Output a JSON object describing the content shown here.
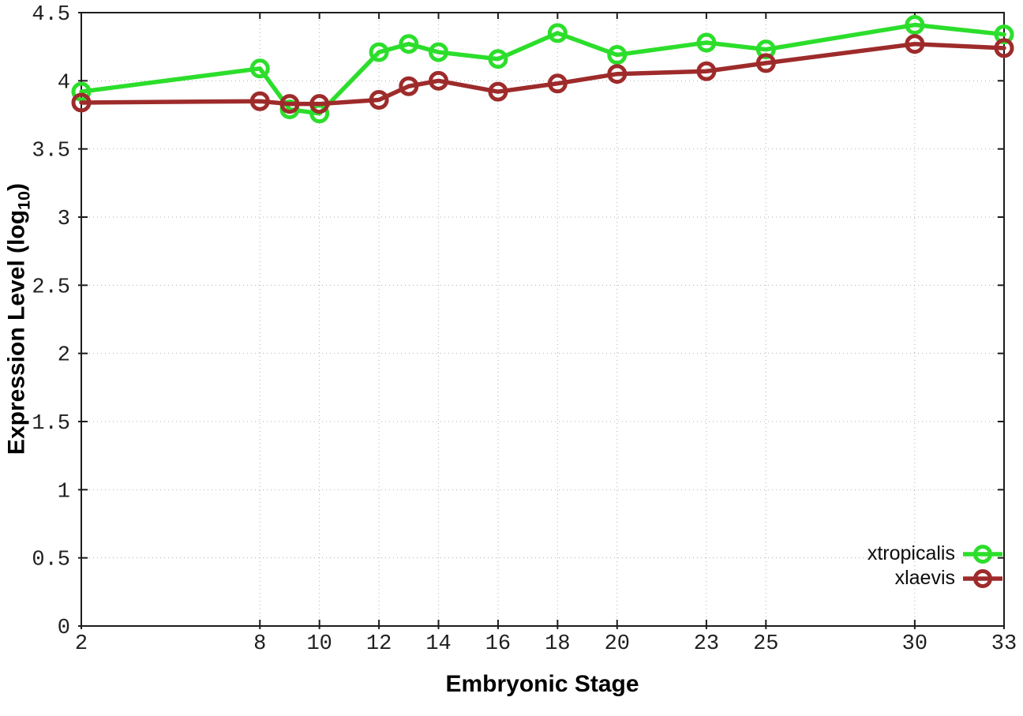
{
  "chart_data": {
    "type": "line",
    "title": "",
    "xlabel": "Embryonic Stage",
    "ylabel": "Expression Level (log10)",
    "ylabel_parts": {
      "prefix": "Expression Level (log",
      "sub": "10",
      "suffix": ")"
    },
    "x": [
      2,
      8,
      9,
      10,
      12,
      13,
      14,
      16,
      18,
      20,
      23,
      25,
      30,
      33
    ],
    "series": [
      {
        "name": "xtropicalis",
        "color": "#2cde2b",
        "marker": "open-circle",
        "values": [
          3.92,
          4.09,
          3.79,
          3.76,
          4.21,
          4.27,
          4.21,
          4.16,
          4.35,
          4.19,
          4.28,
          4.23,
          4.41,
          4.34
        ]
      },
      {
        "name": "xlaevis",
        "color": "#9e2b2b",
        "marker": "open-circle",
        "values": [
          3.84,
          3.85,
          3.83,
          3.83,
          3.86,
          3.96,
          4.0,
          3.92,
          3.98,
          4.05,
          4.07,
          4.13,
          4.27,
          4.24
        ]
      }
    ],
    "xlim": [
      2,
      33
    ],
    "ylim": [
      0,
      4.5
    ],
    "x_tick_values": [
      2,
      8,
      10,
      12,
      14,
      16,
      18,
      20,
      23,
      25,
      30,
      33
    ],
    "x_tick_labels": [
      "2",
      "8",
      "10",
      "12",
      "14",
      "16",
      "18",
      "20",
      "23",
      "25",
      "30",
      "33"
    ],
    "y_tick_values": [
      0,
      0.5,
      1,
      1.5,
      2,
      2.5,
      3,
      3.5,
      4,
      4.5
    ],
    "y_tick_labels": [
      "0",
      "0.5",
      "1",
      "1.5",
      "2",
      "2.5",
      "3",
      "3.5",
      "4",
      "4.5"
    ],
    "grid": true,
    "legend_position": "bottom-right",
    "colors": {
      "grid": "#b0b0b0",
      "axis": "#1c1c1c",
      "background": "#ffffff"
    }
  }
}
